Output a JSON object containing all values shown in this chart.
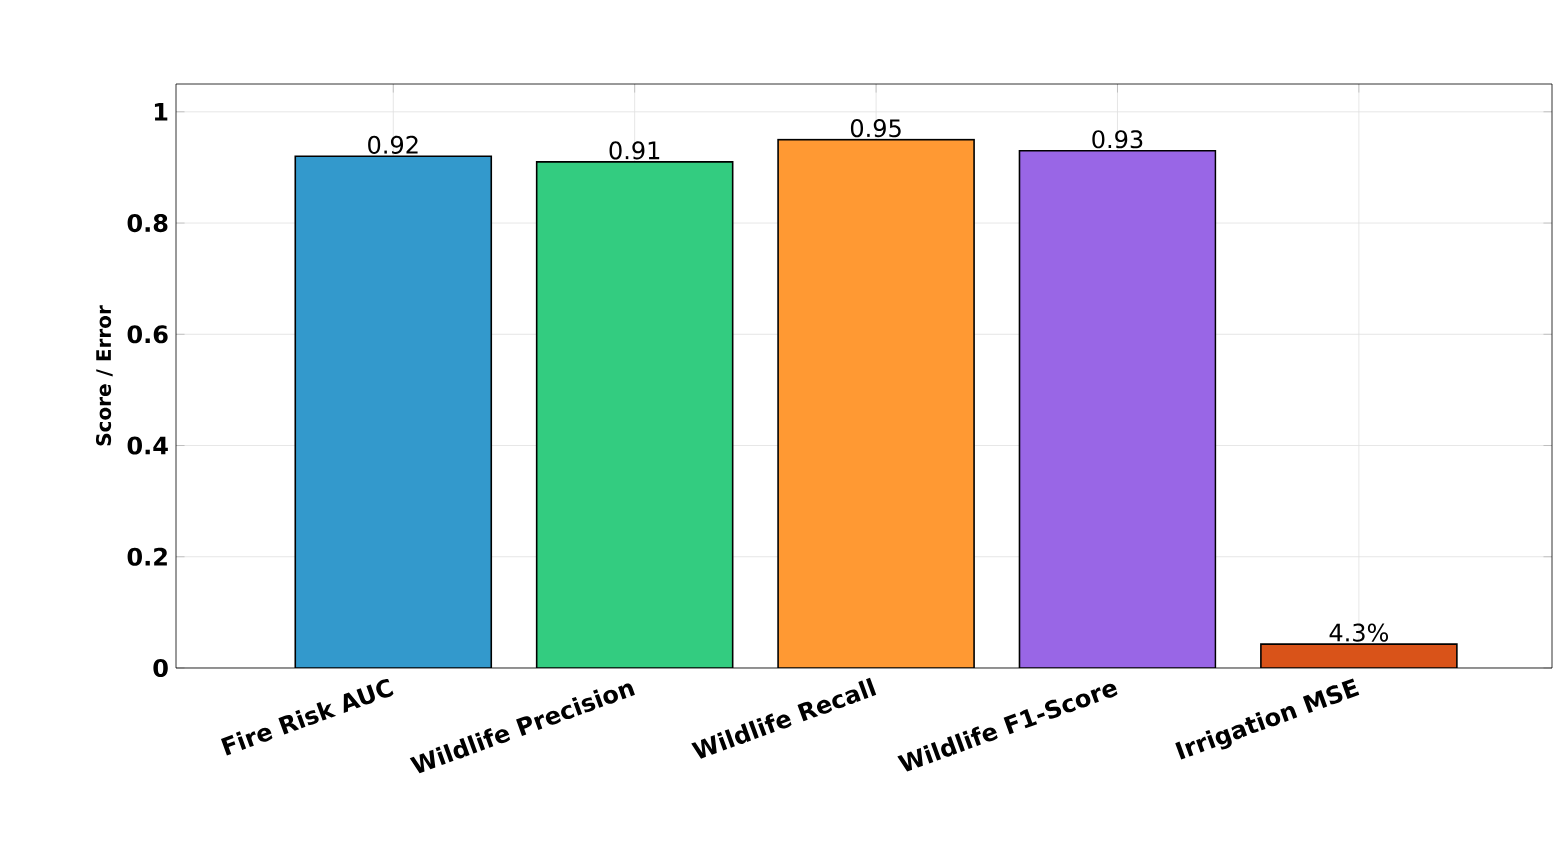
{
  "chart_data": {
    "type": "bar",
    "ylabel": "Score / Error",
    "categories": [
      "Fire Risk AUC",
      "Wildlife Precision",
      "Wildlife Recall",
      "Wildlife F1-Score",
      "Irrigation MSE"
    ],
    "values": [
      0.92,
      0.91,
      0.95,
      0.93,
      0.043
    ],
    "colors": [
      "#3399cc",
      "#33cc80",
      "#ff9933",
      "#9966e6",
      "#d95319"
    ],
    "value_labels": [
      "0.92",
      "0.91",
      "0.95",
      "0.93",
      "4.3%"
    ],
    "ylim": [
      0,
      1.05
    ],
    "yticks": [
      {
        "value": 0,
        "label": "0"
      },
      {
        "value": 0.2,
        "label": "0.2"
      },
      {
        "value": 0.4,
        "label": "0.4"
      },
      {
        "value": 0.6,
        "label": "0.6"
      },
      {
        "value": 0.8,
        "label": "0.8"
      },
      {
        "value": 1,
        "label": "1"
      }
    ],
    "grid": true
  }
}
